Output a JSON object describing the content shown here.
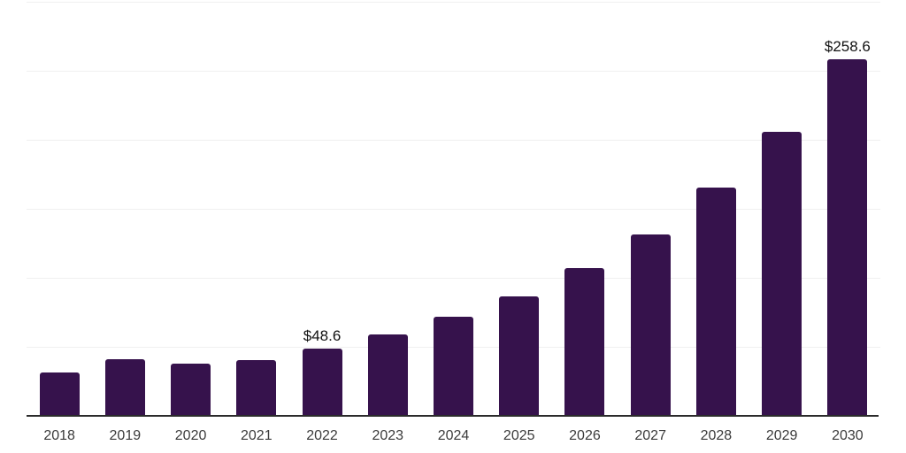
{
  "chart_data": {
    "type": "bar",
    "title": "",
    "xlabel": "",
    "ylabel": "",
    "categories": [
      "2018",
      "2019",
      "2020",
      "2021",
      "2022",
      "2023",
      "2024",
      "2025",
      "2026",
      "2027",
      "2028",
      "2029",
      "2030"
    ],
    "values": [
      31.3,
      40.9,
      37.7,
      40.2,
      48.6,
      58.7,
      71.5,
      86.8,
      107.3,
      131.5,
      165.4,
      205.6,
      258.6
    ],
    "data_labels": {
      "2022": "$48.6",
      "2030": "$258.6"
    },
    "ylim": [
      0,
      300
    ],
    "gridline_step": 50,
    "grid": "horizontal",
    "legend": "none",
    "y_tick_labels_visible": false,
    "bar_color": "#36124c",
    "axis_line_color": "#2b2b2b",
    "gridline_color": "#f0f0f0",
    "tick_label_color": "#3b3b3b",
    "data_label_color": "#111111",
    "background_color": "#ffffff"
  }
}
